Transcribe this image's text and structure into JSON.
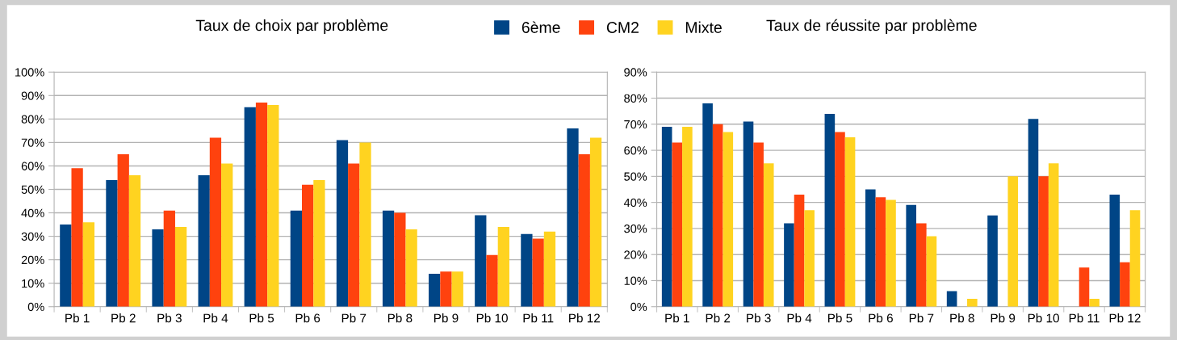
{
  "chart_data": [
    {
      "type": "bar",
      "title": "Taux de choix par problème",
      "categories": [
        "Pb 1",
        "Pb 2",
        "Pb 3",
        "Pb 4",
        "Pb 5",
        "Pb 6",
        "Pb 7",
        "Pb 8",
        "Pb 9",
        "Pb 10",
        "Pb 11",
        "Pb 12"
      ],
      "series": [
        {
          "name": "6ème",
          "color": "#004586",
          "values": [
            35,
            54,
            33,
            56,
            85,
            41,
            71,
            41,
            14,
            39,
            31,
            76
          ]
        },
        {
          "name": "CM2",
          "color": "#ff420e",
          "values": [
            59,
            65,
            41,
            72,
            87,
            52,
            61,
            40,
            15,
            22,
            29,
            65
          ]
        },
        {
          "name": "Mixte",
          "color": "#ffd320",
          "values": [
            36,
            56,
            34,
            61,
            86,
            54,
            70,
            33,
            15,
            34,
            32,
            72
          ]
        }
      ],
      "ylim": [
        0,
        100
      ],
      "yticks": [
        {
          "value": 0,
          "label": "0%"
        },
        {
          "value": 10,
          "label": "10%"
        },
        {
          "value": 20,
          "label": "20%"
        },
        {
          "value": 30,
          "label": "30%"
        },
        {
          "value": 40,
          "label": "40%"
        },
        {
          "value": 50,
          "label": "50%"
        },
        {
          "value": 60,
          "label": "60%"
        },
        {
          "value": 70,
          "label": "70%"
        },
        {
          "value": 80,
          "label": "80%"
        },
        {
          "value": 90,
          "label": "90%"
        },
        {
          "value": 100,
          "label": "100%"
        }
      ],
      "grid": "y",
      "legend": "top"
    },
    {
      "type": "bar",
      "title": "Taux de réussite par problème",
      "categories": [
        "Pb 1",
        "Pb 2",
        "Pb 3",
        "Pb 4",
        "Pb 5",
        "Pb 6",
        "Pb 7",
        "Pb 8",
        "Pb 9",
        "Pb 10",
        "Pb 11",
        "Pb 12"
      ],
      "series": [
        {
          "color": "#004586",
          "values": [
            69,
            78,
            71,
            32,
            74,
            45,
            39,
            6,
            35,
            72,
            0,
            43
          ]
        },
        {
          "color": "#ff420e",
          "values": [
            63,
            70,
            63,
            43,
            67,
            42,
            32,
            0,
            0,
            50,
            15,
            17
          ]
        },
        {
          "color": "#ffd320",
          "values": [
            69,
            67,
            55,
            37,
            65,
            41,
            27,
            3,
            50,
            55,
            3,
            37
          ]
        }
      ],
      "ylim": [
        0,
        90
      ],
      "yticks": [
        {
          "value": 0,
          "label": "0%"
        },
        {
          "value": 10,
          "label": "10%"
        },
        {
          "value": 20,
          "label": "20%"
        },
        {
          "value": 30,
          "label": "30%"
        },
        {
          "value": 40,
          "label": "40%"
        },
        {
          "value": 50,
          "label": "50%"
        },
        {
          "value": 60,
          "label": "60%"
        },
        {
          "value": 70,
          "label": "70%"
        },
        {
          "value": 80,
          "label": "80%"
        },
        {
          "value": 90,
          "label": "90%"
        }
      ],
      "grid": "y"
    }
  ]
}
